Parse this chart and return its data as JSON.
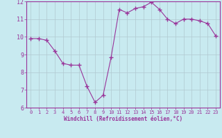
{
  "x": [
    0,
    1,
    2,
    3,
    4,
    5,
    6,
    7,
    8,
    9,
    10,
    11,
    12,
    13,
    14,
    15,
    16,
    17,
    18,
    19,
    20,
    21,
    22,
    23
  ],
  "y": [
    9.9,
    9.9,
    9.8,
    9.2,
    8.5,
    8.4,
    8.4,
    7.2,
    6.3,
    6.7,
    8.85,
    11.55,
    11.35,
    11.6,
    11.7,
    11.95,
    11.55,
    11.0,
    10.75,
    11.0,
    11.0,
    10.9,
    10.75,
    10.05
  ],
  "line_color": "#993399",
  "marker": "+",
  "marker_size": 4,
  "marker_linewidth": 1.0,
  "background_color": "#c8eaf0",
  "grid_color": "#b0c8d0",
  "xlabel": "Windchill (Refroidissement éolien,°C)",
  "xlabel_color": "#993399",
  "tick_color": "#993399",
  "axis_color": "#993399",
  "ylim": [
    6,
    12
  ],
  "xlim": [
    -0.5,
    23.5
  ],
  "yticks": [
    6,
    7,
    8,
    9,
    10,
    11,
    12
  ],
  "xticks": [
    0,
    1,
    2,
    3,
    4,
    5,
    6,
    7,
    8,
    9,
    10,
    11,
    12,
    13,
    14,
    15,
    16,
    17,
    18,
    19,
    20,
    21,
    22,
    23
  ],
  "figsize": [
    3.2,
    2.0
  ],
  "dpi": 100
}
